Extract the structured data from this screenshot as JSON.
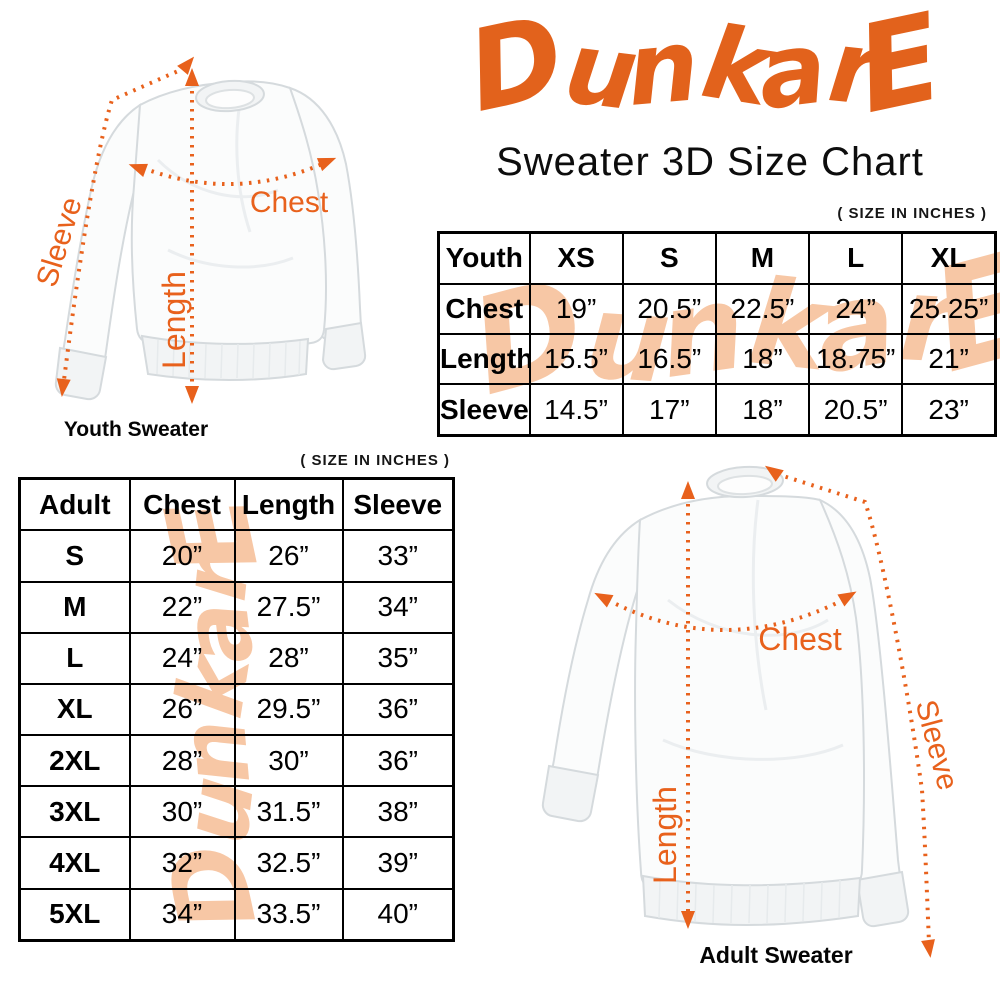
{
  "header": {
    "logo_text": "DunkarE",
    "subtitle": "Sweater 3D Size Chart"
  },
  "size_note": "( SIZE IN INCHES )",
  "watermark_text": "DunkarE",
  "youth": {
    "diagram_caption": "Youth Sweater",
    "labels": {
      "sleeve": "Sleeve",
      "length": "Length",
      "chest": "Chest"
    },
    "table": {
      "corner": "Youth",
      "columns": [
        "XS",
        "S",
        "M",
        "L",
        "XL"
      ],
      "rows": [
        {
          "label": "Chest",
          "values": [
            "19”",
            "20.5”",
            "22.5”",
            "24”",
            "25.25”"
          ]
        },
        {
          "label": "Length",
          "values": [
            "15.5”",
            "16.5”",
            "18”",
            "18.75”",
            "21”"
          ]
        },
        {
          "label": "Sleeve",
          "values": [
            "14.5”",
            "17”",
            "18”",
            "20.5”",
            "23”"
          ]
        }
      ]
    }
  },
  "adult": {
    "diagram_caption": "Adult Sweater",
    "labels": {
      "sleeve": "Sleeve",
      "length": "Length",
      "chest": "Chest"
    },
    "table": {
      "headers": [
        "Adult",
        "Chest",
        "Length",
        "Sleeve"
      ],
      "rows": [
        {
          "size": "S",
          "chest": "20”",
          "length": "26”",
          "sleeve": "33”"
        },
        {
          "size": "M",
          "chest": "22”",
          "length": "27.5”",
          "sleeve": "34”"
        },
        {
          "size": "L",
          "chest": "24”",
          "length": "28”",
          "sleeve": "35”"
        },
        {
          "size": "XL",
          "chest": "26”",
          "length": "29.5”",
          "sleeve": "36”"
        },
        {
          "size": "2XL",
          "chest": "28”",
          "length": "30”",
          "sleeve": "36”"
        },
        {
          "size": "3XL",
          "chest": "30”",
          "length": "31.5”",
          "sleeve": "38”"
        },
        {
          "size": "4XL",
          "chest": "32”",
          "length": "32.5”",
          "sleeve": "39”"
        },
        {
          "size": "5XL",
          "chest": "34”",
          "length": "33.5”",
          "sleeve": "40”"
        }
      ]
    }
  },
  "colors": {
    "accent_orange": "#e2621c",
    "measure_orange": "#e8611c",
    "watermark_peach": "#f7c7a5",
    "table_border": "#000000"
  }
}
